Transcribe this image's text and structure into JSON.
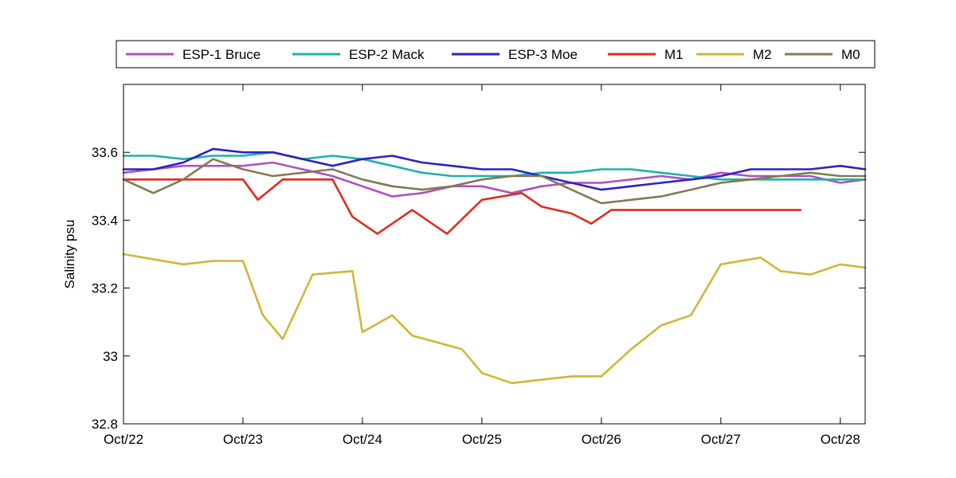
{
  "chart_data": {
    "type": "line",
    "title": "",
    "xlabel": "",
    "ylabel": "Salinity psu",
    "xlim": [
      "2013-10-22T00:00",
      "2013-10-28T05:00"
    ],
    "ylim": [
      32.8,
      33.8
    ],
    "x_ticks": [
      {
        "value": "2013-10-22",
        "label": "Oct/22"
      },
      {
        "value": "2013-10-23",
        "label": "Oct/23"
      },
      {
        "value": "2013-10-24",
        "label": "Oct/24"
      },
      {
        "value": "2013-10-25",
        "label": "Oct/25"
      },
      {
        "value": "2013-10-26",
        "label": "Oct/26"
      },
      {
        "value": "2013-10-27",
        "label": "Oct/27"
      },
      {
        "value": "2013-10-28",
        "label": "Oct/28"
      }
    ],
    "y_ticks": [
      {
        "value": 32.8,
        "label": "32.8"
      },
      {
        "value": 33.0,
        "label": "33"
      },
      {
        "value": 33.2,
        "label": "33.2"
      },
      {
        "value": 33.4,
        "label": "33.4"
      },
      {
        "value": 33.6,
        "label": "33.6"
      }
    ],
    "grid": false,
    "legend_position": "top",
    "series": [
      {
        "name": "ESP-1 Bruce",
        "color": "#b24fc0",
        "points": [
          [
            "2013-10-22T00:00",
            33.54
          ],
          [
            "2013-10-22T06:00",
            33.55
          ],
          [
            "2013-10-22T12:00",
            33.56
          ],
          [
            "2013-10-22T18:00",
            33.56
          ],
          [
            "2013-10-23T00:00",
            33.56
          ],
          [
            "2013-10-23T06:00",
            33.57
          ],
          [
            "2013-10-23T12:00",
            33.55
          ],
          [
            "2013-10-23T18:00",
            33.53
          ],
          [
            "2013-10-24T00:00",
            33.5
          ],
          [
            "2013-10-24T06:00",
            33.47
          ],
          [
            "2013-10-24T12:00",
            33.48
          ],
          [
            "2013-10-24T18:00",
            33.5
          ],
          [
            "2013-10-25T00:00",
            33.5
          ],
          [
            "2013-10-25T06:00",
            33.48
          ],
          [
            "2013-10-25T12:00",
            33.5
          ],
          [
            "2013-10-25T18:00",
            33.51
          ],
          [
            "2013-10-26T00:00",
            33.51
          ],
          [
            "2013-10-26T06:00",
            33.52
          ],
          [
            "2013-10-26T12:00",
            33.53
          ],
          [
            "2013-10-26T18:00",
            33.52
          ],
          [
            "2013-10-27T00:00",
            33.54
          ],
          [
            "2013-10-27T06:00",
            33.53
          ],
          [
            "2013-10-27T12:00",
            33.53
          ],
          [
            "2013-10-27T18:00",
            33.53
          ],
          [
            "2013-10-28T00:00",
            33.51
          ],
          [
            "2013-10-28T05:00",
            33.52
          ]
        ]
      },
      {
        "name": "ESP-2 Mack",
        "color": "#1fb1ab",
        "points": [
          [
            "2013-10-22T00:00",
            33.59
          ],
          [
            "2013-10-22T06:00",
            33.59
          ],
          [
            "2013-10-22T12:00",
            33.58
          ],
          [
            "2013-10-22T18:00",
            33.59
          ],
          [
            "2013-10-23T00:00",
            33.59
          ],
          [
            "2013-10-23T06:00",
            33.6
          ],
          [
            "2013-10-23T12:00",
            33.58
          ],
          [
            "2013-10-23T18:00",
            33.59
          ],
          [
            "2013-10-24T00:00",
            33.58
          ],
          [
            "2013-10-24T06:00",
            33.56
          ],
          [
            "2013-10-24T12:00",
            33.54
          ],
          [
            "2013-10-24T18:00",
            33.53
          ],
          [
            "2013-10-25T00:00",
            33.53
          ],
          [
            "2013-10-25T06:00",
            33.53
          ],
          [
            "2013-10-25T12:00",
            33.54
          ],
          [
            "2013-10-25T18:00",
            33.54
          ],
          [
            "2013-10-26T00:00",
            33.55
          ],
          [
            "2013-10-26T06:00",
            33.55
          ],
          [
            "2013-10-26T12:00",
            33.54
          ],
          [
            "2013-10-26T18:00",
            33.53
          ],
          [
            "2013-10-27T00:00",
            33.52
          ],
          [
            "2013-10-27T06:00",
            33.52
          ],
          [
            "2013-10-27T12:00",
            33.52
          ],
          [
            "2013-10-27T18:00",
            33.52
          ],
          [
            "2013-10-28T00:00",
            33.52
          ],
          [
            "2013-10-28T05:00",
            33.52
          ]
        ]
      },
      {
        "name": "ESP-3 Moe",
        "color": "#2d22c4",
        "points": [
          [
            "2013-10-22T00:00",
            33.55
          ],
          [
            "2013-10-22T06:00",
            33.55
          ],
          [
            "2013-10-22T12:00",
            33.57
          ],
          [
            "2013-10-22T18:00",
            33.61
          ],
          [
            "2013-10-23T00:00",
            33.6
          ],
          [
            "2013-10-23T06:00",
            33.6
          ],
          [
            "2013-10-23T12:00",
            33.58
          ],
          [
            "2013-10-23T18:00",
            33.56
          ],
          [
            "2013-10-24T00:00",
            33.58
          ],
          [
            "2013-10-24T06:00",
            33.59
          ],
          [
            "2013-10-24T12:00",
            33.57
          ],
          [
            "2013-10-24T18:00",
            33.56
          ],
          [
            "2013-10-25T00:00",
            33.55
          ],
          [
            "2013-10-25T06:00",
            33.55
          ],
          [
            "2013-10-25T12:00",
            33.53
          ],
          [
            "2013-10-25T18:00",
            33.51
          ],
          [
            "2013-10-26T00:00",
            33.49
          ],
          [
            "2013-10-26T06:00",
            33.5
          ],
          [
            "2013-10-26T12:00",
            33.51
          ],
          [
            "2013-10-26T18:00",
            33.52
          ],
          [
            "2013-10-27T00:00",
            33.53
          ],
          [
            "2013-10-27T06:00",
            33.55
          ],
          [
            "2013-10-27T12:00",
            33.55
          ],
          [
            "2013-10-27T18:00",
            33.55
          ],
          [
            "2013-10-28T00:00",
            33.56
          ],
          [
            "2013-10-28T05:00",
            33.55
          ]
        ]
      },
      {
        "name": "M1",
        "color": "#e02c1c",
        "points": [
          [
            "2013-10-22T00:00",
            33.52
          ],
          [
            "2013-10-22T12:00",
            33.52
          ],
          [
            "2013-10-23T00:00",
            33.52
          ],
          [
            "2013-10-23T03:00",
            33.46
          ],
          [
            "2013-10-23T08:00",
            33.52
          ],
          [
            "2013-10-23T18:00",
            33.52
          ],
          [
            "2013-10-23T22:00",
            33.41
          ],
          [
            "2013-10-24T03:00",
            33.36
          ],
          [
            "2013-10-24T10:00",
            33.43
          ],
          [
            "2013-10-24T17:00",
            33.36
          ],
          [
            "2013-10-25T00:00",
            33.46
          ],
          [
            "2013-10-25T08:00",
            33.48
          ],
          [
            "2013-10-25T12:00",
            33.44
          ],
          [
            "2013-10-25T18:00",
            33.42
          ],
          [
            "2013-10-25T22:00",
            33.39
          ],
          [
            "2013-10-26T02:00",
            33.43
          ],
          [
            "2013-10-26T12:00",
            33.43
          ],
          [
            "2013-10-26T20:00",
            33.43
          ],
          [
            "2013-10-27T00:00",
            33.43
          ],
          [
            "2013-10-27T12:00",
            33.43
          ],
          [
            "2013-10-27T16:00",
            33.43
          ]
        ]
      },
      {
        "name": "M2",
        "color": "#d2b636",
        "points": [
          [
            "2013-10-22T00:00",
            33.3
          ],
          [
            "2013-10-22T12:00",
            33.27
          ],
          [
            "2013-10-22T18:00",
            33.28
          ],
          [
            "2013-10-23T00:00",
            33.28
          ],
          [
            "2013-10-23T04:00",
            33.12
          ],
          [
            "2013-10-23T08:00",
            33.05
          ],
          [
            "2013-10-23T14:00",
            33.24
          ],
          [
            "2013-10-23T22:00",
            33.25
          ],
          [
            "2013-10-24T00:00",
            33.07
          ],
          [
            "2013-10-24T06:00",
            33.12
          ],
          [
            "2013-10-24T10:00",
            33.06
          ],
          [
            "2013-10-24T20:00",
            33.02
          ],
          [
            "2013-10-25T00:00",
            32.95
          ],
          [
            "2013-10-25T06:00",
            32.92
          ],
          [
            "2013-10-25T12:00",
            32.93
          ],
          [
            "2013-10-25T18:00",
            32.94
          ],
          [
            "2013-10-26T00:00",
            32.94
          ],
          [
            "2013-10-26T06:00",
            33.02
          ],
          [
            "2013-10-26T12:00",
            33.09
          ],
          [
            "2013-10-26T18:00",
            33.12
          ],
          [
            "2013-10-27T00:00",
            33.27
          ],
          [
            "2013-10-27T08:00",
            33.29
          ],
          [
            "2013-10-27T12:00",
            33.25
          ],
          [
            "2013-10-27T18:00",
            33.24
          ],
          [
            "2013-10-28T00:00",
            33.27
          ],
          [
            "2013-10-28T05:00",
            33.26
          ]
        ]
      },
      {
        "name": "M0",
        "color": "#847a50",
        "points": [
          [
            "2013-10-22T00:00",
            33.52
          ],
          [
            "2013-10-22T06:00",
            33.48
          ],
          [
            "2013-10-22T12:00",
            33.52
          ],
          [
            "2013-10-22T18:00",
            33.58
          ],
          [
            "2013-10-23T00:00",
            33.55
          ],
          [
            "2013-10-23T06:00",
            33.53
          ],
          [
            "2013-10-23T12:00",
            33.54
          ],
          [
            "2013-10-23T18:00",
            33.55
          ],
          [
            "2013-10-24T00:00",
            33.52
          ],
          [
            "2013-10-24T06:00",
            33.5
          ],
          [
            "2013-10-24T12:00",
            33.49
          ],
          [
            "2013-10-24T18:00",
            33.5
          ],
          [
            "2013-10-25T00:00",
            33.52
          ],
          [
            "2013-10-25T06:00",
            33.53
          ],
          [
            "2013-10-25T12:00",
            33.53
          ],
          [
            "2013-10-25T18:00",
            33.49
          ],
          [
            "2013-10-26T00:00",
            33.45
          ],
          [
            "2013-10-26T06:00",
            33.46
          ],
          [
            "2013-10-26T12:00",
            33.47
          ],
          [
            "2013-10-26T18:00",
            33.49
          ],
          [
            "2013-10-27T00:00",
            33.51
          ],
          [
            "2013-10-27T06:00",
            33.52
          ],
          [
            "2013-10-27T12:00",
            33.53
          ],
          [
            "2013-10-27T18:00",
            33.54
          ],
          [
            "2013-10-28T00:00",
            33.53
          ],
          [
            "2013-10-28T05:00",
            33.53
          ]
        ]
      }
    ]
  }
}
